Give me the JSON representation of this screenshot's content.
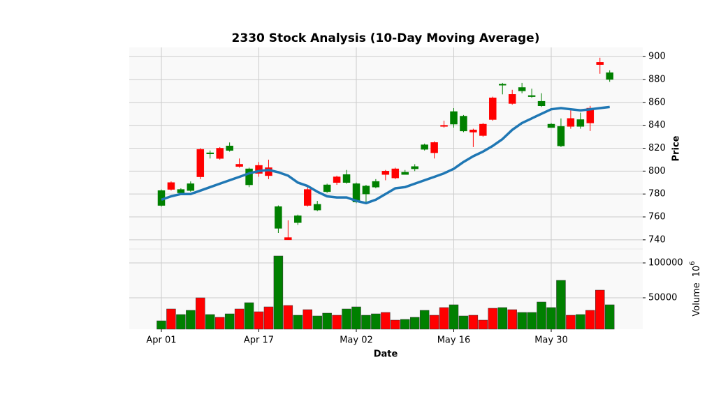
{
  "chart_data": {
    "type": "candlestick",
    "title": "2330 Stock Analysis (10-Day Moving Average)",
    "xlabel": "Date",
    "ylabel": "Price",
    "volume_ylabel": "Volume",
    "volume_offset_base": "10",
    "volume_offset_exponent": "6",
    "categories": [
      "Apr 01",
      null,
      null,
      null,
      null,
      null,
      null,
      null,
      null,
      null,
      "Apr 17",
      null,
      null,
      null,
      null,
      null,
      null,
      null,
      null,
      null,
      "May 02",
      null,
      null,
      null,
      null,
      null,
      null,
      null,
      null,
      null,
      "May 16",
      null,
      null,
      null,
      null,
      null,
      null,
      null,
      null,
      null,
      "May 30",
      null,
      null,
      null,
      null,
      null,
      null
    ],
    "open": [
      770,
      790,
      781,
      783,
      819,
      815,
      820,
      818,
      806,
      788,
      805,
      803,
      750,
      742,
      755,
      784,
      766,
      782,
      795,
      790,
      773,
      780,
      786,
      800,
      802,
      797,
      802,
      819,
      825,
      840,
      841,
      835,
      836,
      841,
      864,
      875,
      867,
      870,
      865,
      857,
      838,
      822,
      846,
      839,
      855,
      895,
      880
    ],
    "high": [
      784,
      791,
      785,
      791,
      820,
      818,
      821,
      825,
      811,
      803,
      808,
      810,
      770,
      757,
      762,
      786,
      774,
      789,
      796,
      801,
      790,
      788,
      793,
      801,
      803,
      801,
      806,
      824,
      826,
      844,
      855,
      849,
      837,
      842,
      865,
      877,
      871,
      877,
      872,
      868,
      842,
      846,
      853,
      851,
      857,
      899,
      888
    ],
    "low": [
      769,
      783,
      779,
      782,
      793,
      811,
      810,
      817,
      803,
      786,
      795,
      793,
      746,
      740,
      753,
      769,
      765,
      781,
      788,
      789,
      772,
      772,
      785,
      792,
      793,
      797,
      800,
      818,
      811,
      838,
      838,
      834,
      821,
      830,
      844,
      867,
      858,
      868,
      864,
      856,
      838,
      821,
      837,
      837,
      835,
      885,
      878
    ],
    "close": [
      783,
      784,
      784,
      789,
      795,
      816,
      811,
      822,
      804,
      802,
      798,
      796,
      769,
      740,
      761,
      770,
      771,
      788,
      790,
      797,
      789,
      787,
      791,
      797,
      794,
      799,
      804,
      823,
      816,
      839,
      852,
      848,
      834,
      831,
      845,
      876,
      859,
      873,
      866,
      861,
      841,
      839,
      839,
      845,
      842,
      893,
      886
    ],
    "up_color": "#008000",
    "down_color": "#ff0000",
    "ma": {
      "color": "#1f77b4",
      "values": [
        775,
        778,
        780,
        780,
        783,
        786,
        789,
        792,
        795,
        798,
        800,
        801,
        799,
        796,
        790,
        787,
        782,
        778,
        777,
        777,
        774,
        772,
        775,
        780,
        785,
        786,
        789,
        792,
        795,
        798,
        802,
        808,
        813,
        817,
        822,
        828,
        836,
        842,
        846,
        850,
        854,
        855,
        854,
        853,
        854,
        855,
        856
      ]
    },
    "ylim": [
      732,
      908
    ],
    "yticks": [
      740,
      760,
      780,
      800,
      820,
      840,
      860,
      880,
      900
    ],
    "volume": {
      "values": [
        17000,
        34000,
        26000,
        32000,
        50000,
        26000,
        22000,
        27000,
        34000,
        43000,
        30000,
        37000,
        110000,
        39000,
        25000,
        33000,
        24000,
        28000,
        25000,
        34000,
        37000,
        25000,
        27000,
        29000,
        18000,
        19000,
        22000,
        32000,
        25000,
        36000,
        40000,
        24000,
        25000,
        18000,
        35000,
        36000,
        33000,
        29000,
        29000,
        44000,
        36000,
        75000,
        25000,
        26000,
        32000,
        61000,
        40000
      ],
      "ylim": [
        5000,
        120000
      ],
      "yticks": [
        50000,
        100000
      ]
    },
    "grid": true
  }
}
